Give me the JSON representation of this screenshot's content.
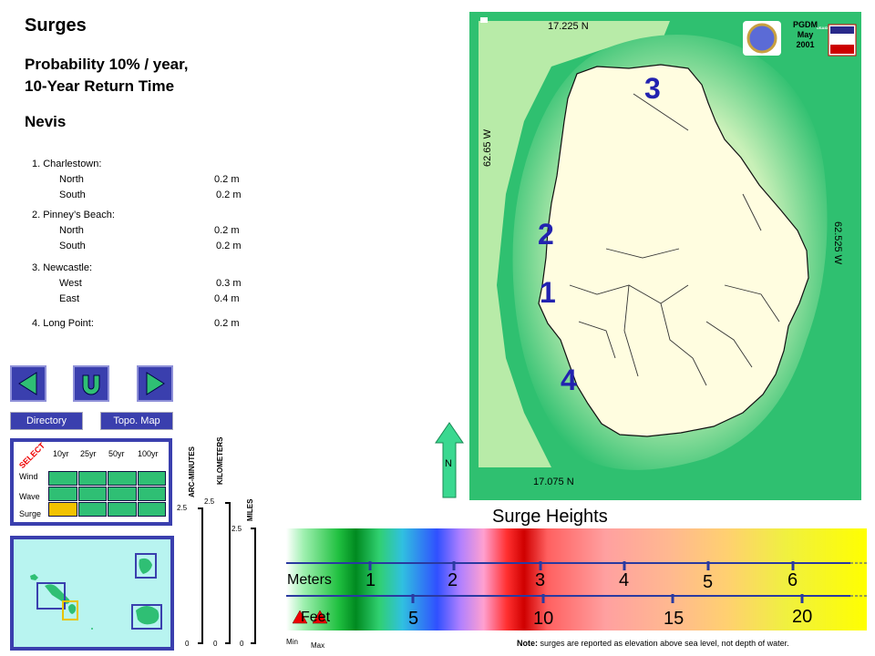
{
  "header": {
    "title": "Surges",
    "subtitle_line1": "Probability 10% / year,",
    "subtitle_line2": "10-Year Return Time",
    "island": "Nevis"
  },
  "locations": [
    {
      "name": "1. Charlestown:",
      "rows": [
        {
          "label": "North",
          "value": "0.2 m"
        },
        {
          "label": "South",
          "value": "0.2 m"
        }
      ]
    },
    {
      "name": "2. Pinney’s Beach:",
      "rows": [
        {
          "label": "North",
          "value": "0.2 m"
        },
        {
          "label": "South",
          "value": "0.2 m"
        }
      ]
    },
    {
      "name": "3. Newcastle:",
      "rows": [
        {
          "label": "West",
          "value": "0.3 m"
        },
        {
          "label": "East",
          "value": "0.4 m"
        }
      ]
    },
    {
      "name": "4. Long Point:",
      "value": "0.2 m"
    }
  ],
  "nav": {
    "directory": "Directory",
    "topo_map": "Topo. Map"
  },
  "select_grid": {
    "select_label": "SELECT",
    "columns": [
      "10yr",
      "25yr",
      "50yr",
      "100yr"
    ],
    "rows": [
      "Wind",
      "Wave",
      "Surge"
    ],
    "selected": {
      "row": "Surge",
      "column": "10yr"
    },
    "colors": {
      "cell": "#2fbf74",
      "selected": "#f2c200"
    }
  },
  "scales": {
    "arc_minutes": {
      "label": "ARC-MINUTES",
      "top": "2.5",
      "bottom": "0"
    },
    "kilometers": {
      "label": "KILOMETERS",
      "top": "2.5",
      "bottom": "0"
    },
    "miles": {
      "label": "MILES",
      "top": "2.5",
      "bottom": "0"
    }
  },
  "map": {
    "lat_top": "17.225 N",
    "lat_bottom": "17.075 N",
    "lon_left": "62.65 W",
    "lon_right": "62.525 W",
    "credit_line1": "PGDM",
    "credit_line2": "May",
    "credit_line3": "2001",
    "logo_text": "USAID",
    "north": "N",
    "markers": [
      "3",
      "2",
      "1",
      "4"
    ],
    "colors": {
      "sea": "#2fc070",
      "land": "#fffde0"
    }
  },
  "legend": {
    "title": "Surge Heights",
    "meters_label": "Meters",
    "feet_label": "Feet",
    "meter_ticks": [
      "1",
      "2",
      "3",
      "4",
      "5",
      "6"
    ],
    "feet_ticks": [
      "5",
      "10",
      "15",
      "20"
    ],
    "min_label": "Min",
    "max_label": "Max",
    "note_bold": "Note:",
    "note_text": " surges are reported as elevation above sea level, not depth of water."
  }
}
